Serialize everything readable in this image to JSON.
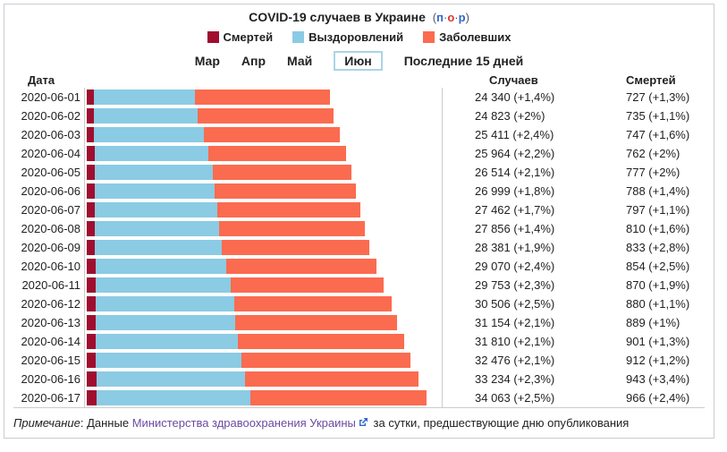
{
  "header": {
    "title": "COVID-19 случаев в Украине",
    "links": {
      "open": "(",
      "p": "п",
      "sep1": "·",
      "o": "о",
      "sep2": "·",
      "r": "р",
      "close": ")"
    }
  },
  "colors": {
    "deaths": "#a00e2f",
    "recovered": "#8bcbe4",
    "sick": "#fb6b4f",
    "axis": "#cccccc",
    "panel_border": "#c8ccd1",
    "link_blue": "#3366cc",
    "link_red": "#dd3333",
    "link_visited": "#6b4ba1"
  },
  "legend": {
    "items": [
      {
        "label": "Смертей",
        "color": "#a00e2f"
      },
      {
        "label": "Выздоровлений",
        "color": "#8bcbe4"
      },
      {
        "label": "Заболевших",
        "color": "#fb6b4f"
      }
    ]
  },
  "tabs": {
    "items": [
      "Мар",
      "Апр",
      "Май",
      "Июн",
      "Последние 15 дней"
    ],
    "selected": "Июн"
  },
  "table": {
    "headers": {
      "date": "Дата",
      "cases": "Случаев",
      "deaths": "Смертей"
    },
    "rows": [
      {
        "date": "2020-06-01",
        "cases_label": "24 340 (+1,4%)",
        "deaths_label": "727 (+1,3%)",
        "cases": 24340,
        "deaths": 727,
        "recovered": 10090
      },
      {
        "date": "2020-06-02",
        "cases_label": "24 823 (+2%)",
        "deaths_label": "735 (+1,1%)",
        "cases": 24823,
        "deaths": 735,
        "recovered": 10440
      },
      {
        "date": "2020-06-03",
        "cases_label": "25 411 (+2,4%)",
        "deaths_label": "747 (+1,6%)",
        "cases": 25411,
        "deaths": 747,
        "recovered": 11060
      },
      {
        "date": "2020-06-04",
        "cases_label": "25 964 (+2,2%)",
        "deaths_label": "762 (+2%)",
        "cases": 25964,
        "deaths": 762,
        "recovered": 11370
      },
      {
        "date": "2020-06-05",
        "cases_label": "26 514 (+2,1%)",
        "deaths_label": "777 (+2%)",
        "cases": 26514,
        "deaths": 777,
        "recovered": 11840
      },
      {
        "date": "2020-06-06",
        "cases_label": "26 999 (+1,8%)",
        "deaths_label": "788 (+1,4%)",
        "cases": 26999,
        "deaths": 788,
        "recovered": 12030
      },
      {
        "date": "2020-06-07",
        "cases_label": "27 462 (+1,7%)",
        "deaths_label": "797 (+1,1%)",
        "cases": 27462,
        "deaths": 797,
        "recovered": 12290
      },
      {
        "date": "2020-06-08",
        "cases_label": "27 856 (+1,4%)",
        "deaths_label": "810 (+1,6%)",
        "cases": 27856,
        "deaths": 810,
        "recovered": 12460
      },
      {
        "date": "2020-06-09",
        "cases_label": "28 381 (+1,9%)",
        "deaths_label": "833 (+2,8%)",
        "cases": 28381,
        "deaths": 833,
        "recovered": 12730
      },
      {
        "date": "2020-06-10",
        "cases_label": "29 070 (+2,4%)",
        "deaths_label": "854 (+2,5%)",
        "cases": 29070,
        "deaths": 854,
        "recovered": 13130
      },
      {
        "date": "2020-06-11",
        "cases_label": "29 753 (+2,3%)",
        "deaths_label": "870 (+1,9%)",
        "cases": 29753,
        "deaths": 870,
        "recovered": 13540
      },
      {
        "date": "2020-06-12",
        "cases_label": "30 506 (+2,5%)",
        "deaths_label": "880 (+1,1%)",
        "cases": 30506,
        "deaths": 880,
        "recovered": 13880
      },
      {
        "date": "2020-06-13",
        "cases_label": "31 154 (+2,1%)",
        "deaths_label": "889 (+1%)",
        "cases": 31154,
        "deaths": 889,
        "recovered": 14020
      },
      {
        "date": "2020-06-14",
        "cases_label": "31 810 (+2,1%)",
        "deaths_label": "901 (+1,3%)",
        "cases": 31810,
        "deaths": 901,
        "recovered": 14250
      },
      {
        "date": "2020-06-15",
        "cases_label": "32 476 (+2,1%)",
        "deaths_label": "912 (+1,2%)",
        "cases": 32476,
        "deaths": 912,
        "recovered": 14600
      },
      {
        "date": "2020-06-16",
        "cases_label": "33 234 (+2,3%)",
        "deaths_label": "943 (+3,4%)",
        "cases": 33234,
        "deaths": 943,
        "recovered": 14900
      },
      {
        "date": "2020-06-17",
        "cases_label": "34 063 (+2,5%)",
        "deaths_label": "966 (+2,4%)",
        "cases": 34063,
        "deaths": 966,
        "recovered": 15440
      }
    ]
  },
  "note": {
    "label": "Примечание",
    "before_link": ": Данные ",
    "link": "Министерства здравоохранения Украины",
    "after_link": " за сутки, предшествующие дню опубликования"
  },
  "chart_data": {
    "type": "bar",
    "orientation": "horizontal",
    "stacked": true,
    "title": "COVID-19 случаев в Украине",
    "categories": [
      "2020-06-01",
      "2020-06-02",
      "2020-06-03",
      "2020-06-04",
      "2020-06-05",
      "2020-06-06",
      "2020-06-07",
      "2020-06-08",
      "2020-06-09",
      "2020-06-10",
      "2020-06-11",
      "2020-06-12",
      "2020-06-13",
      "2020-06-14",
      "2020-06-15",
      "2020-06-16",
      "2020-06-17"
    ],
    "series": [
      {
        "name": "Смертей",
        "color": "#a00e2f",
        "values": [
          727,
          735,
          747,
          762,
          777,
          788,
          797,
          810,
          833,
          854,
          870,
          880,
          889,
          901,
          912,
          943,
          966
        ]
      },
      {
        "name": "Выздоровлений",
        "color": "#8bcbe4",
        "values": [
          10090,
          10440,
          11060,
          11370,
          11840,
          12030,
          12290,
          12460,
          12730,
          13130,
          13540,
          13880,
          14020,
          14250,
          14600,
          14900,
          15440
        ]
      },
      {
        "name": "Заболевших (активные)",
        "color": "#fb6b4f",
        "values": [
          13523,
          13648,
          13604,
          13832,
          13897,
          14181,
          14375,
          14586,
          14818,
          15086,
          15343,
          15746,
          16245,
          16659,
          16964,
          17391,
          17657
        ]
      }
    ],
    "totals_cases": [
      24340,
      24823,
      25411,
      25964,
      26514,
      26999,
      27462,
      27856,
      28381,
      29070,
      29753,
      30506,
      31154,
      31810,
      32476,
      33234,
      34063
    ],
    "cases_growth_pct": [
      "+1,4%",
      "+2%",
      "+2,4%",
      "+2,2%",
      "+2,1%",
      "+1,8%",
      "+1,7%",
      "+1,4%",
      "+1,9%",
      "+2,4%",
      "+2,3%",
      "+2,5%",
      "+2,1%",
      "+2,1%",
      "+2,1%",
      "+2,3%",
      "+2,5%"
    ],
    "deaths_growth_pct": [
      "+1,3%",
      "+1,1%",
      "+1,6%",
      "+2%",
      "+2%",
      "+1,4%",
      "+1,1%",
      "+1,6%",
      "+2,8%",
      "+2,5%",
      "+1,9%",
      "+1,1%",
      "+1%",
      "+1,3%",
      "+1,2%",
      "+3,4%",
      "+2,4%"
    ],
    "xlim": [
      0,
      35300
    ],
    "legend_position": "top",
    "grid": false
  }
}
